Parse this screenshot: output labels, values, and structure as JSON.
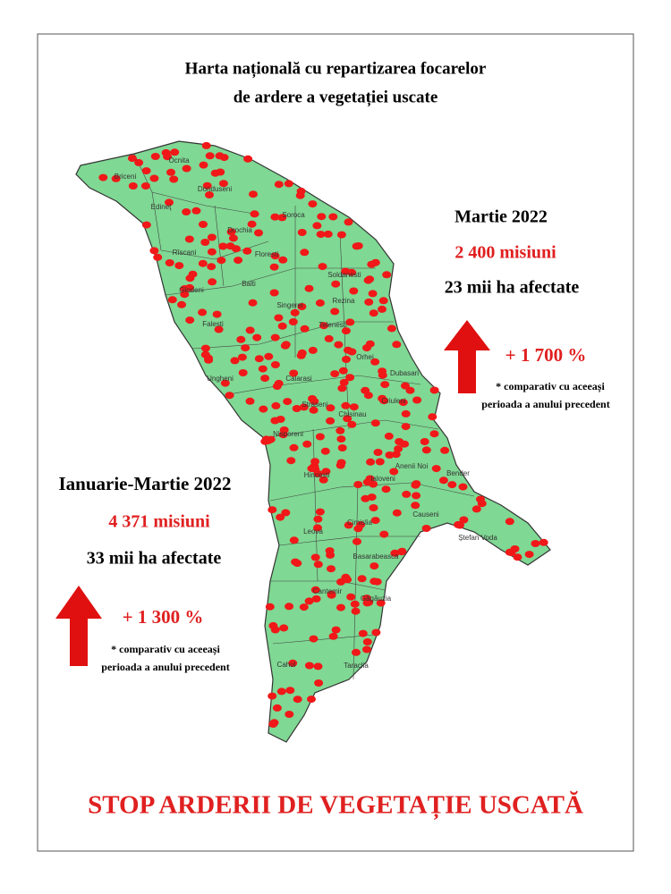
{
  "title": {
    "line1": "Harta națională cu repartizarea focarelor",
    "line2": "de ardere a vegetației uscate"
  },
  "districts": [
    "Ocnita",
    "Briceni",
    "Donduseni",
    "Edineţ",
    "Soroca",
    "Drochia",
    "Rîscani",
    "Floresti",
    "Soldanesti",
    "Glodeni",
    "Balti",
    "Rezina",
    "Singerei",
    "Falesti",
    "Telenesti",
    "Orhei",
    "Dubasari",
    "Ungheni",
    "Calarasi",
    "Criuleni",
    "Straseni",
    "Chisinau",
    "Nisporeni",
    "Anenii Noi",
    "Bender",
    "Hincesti",
    "Ialoveni",
    "Causeni",
    "Ștefan Voda",
    "Leova",
    "Cimislia",
    "Basarabeasca",
    "Cantemir",
    "Găgăuzia",
    "Cahul",
    "Taraclia"
  ],
  "march": {
    "period": "Martie 2022",
    "missions": "2 400 misiuni",
    "area": "23 mii ha afectate",
    "change": "+ 1 700 %",
    "note1": "* comparativ cu aceeași",
    "note2": "perioada a anului precedent"
  },
  "quarter": {
    "period": "Ianuarie-Martie 2022",
    "missions": "4 371 misiuni",
    "area": "33 mii ha afectate",
    "change": "+ 1 300 %",
    "note1": "* comparativ cu aceeași",
    "note2": "perioada a anului precedent"
  },
  "footer": "STOP ARDERII DE VEGETAȚIE USCATĂ"
}
